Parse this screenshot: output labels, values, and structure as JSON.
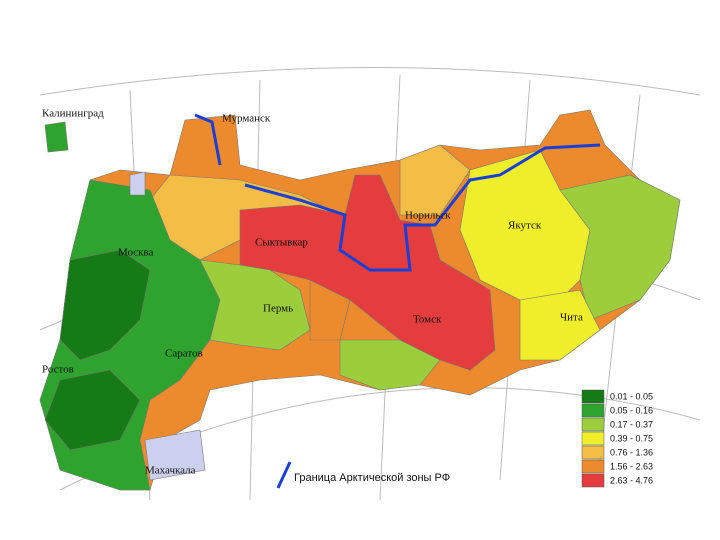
{
  "cities": [
    {
      "label": "Калининград"
    },
    {
      "label": "Мурманск"
    },
    {
      "label": "Норильск"
    },
    {
      "label": "Якутск"
    },
    {
      "label": "Москва"
    },
    {
      "label": "Сыктывкар"
    },
    {
      "label": "Пермь"
    },
    {
      "label": "Саратов"
    },
    {
      "label": "Ростов"
    },
    {
      "label": "Томск"
    },
    {
      "label": "Чита"
    },
    {
      "label": "Махачкала"
    }
  ],
  "legend": {
    "items": [
      {
        "label": "0.01 - 0.05",
        "color": "#167a16"
      },
      {
        "label": "0.05 - 0.16",
        "color": "#2ea32e"
      },
      {
        "label": "0.17 - 0.37",
        "color": "#9ccd3c"
      },
      {
        "label": "0.39 - 0.75",
        "color": "#eeee2a"
      },
      {
        "label": "0.76 - 1.36",
        "color": "#f4bd46"
      },
      {
        "label": "1.56 - 2.63",
        "color": "#ee8a2e"
      },
      {
        "label": "2.63 - 4.76",
        "color": "#e53d3d"
      }
    ],
    "border_label": "Граница Арктической зоны РФ",
    "border_color": "#1a3fd6"
  }
}
